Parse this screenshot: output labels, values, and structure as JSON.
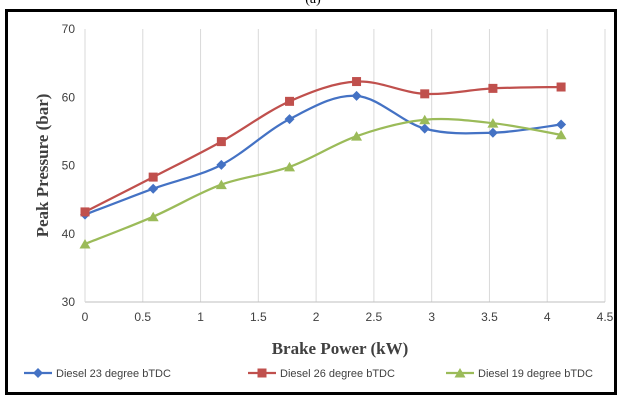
{
  "chart_data": {
    "type": "line",
    "title": "",
    "top_label": "(a)",
    "xlabel": "Brake Power (kW)",
    "ylabel": "Peak Pressure (bar)",
    "xlim": [
      0,
      4.5
    ],
    "ylim": [
      30,
      70
    ],
    "x_ticks": [
      "0",
      "0.5",
      "1",
      "1.5",
      "2",
      "2.5",
      "3",
      "3.5",
      "4",
      "4.5"
    ],
    "y_ticks": [
      "30",
      "40",
      "50",
      "60",
      "70"
    ],
    "grid": "vertical",
    "smooth": true,
    "legend_position": "bottom",
    "series": [
      {
        "name": "Diesel 23 degree bTDC",
        "color": "#4472C4",
        "marker": "diamond",
        "x": [
          0,
          0.59,
          1.18,
          1.77,
          2.35,
          2.94,
          3.53,
          4.12
        ],
        "y": [
          42.8,
          46.6,
          50.1,
          56.8,
          60.2,
          55.4,
          54.8,
          56.0
        ]
      },
      {
        "name": "Diesel 26 degree bTDC",
        "color": "#C0504D",
        "marker": "square",
        "x": [
          0,
          0.59,
          1.18,
          1.77,
          2.35,
          2.94,
          3.53,
          4.12
        ],
        "y": [
          43.2,
          48.3,
          53.5,
          59.4,
          62.3,
          60.5,
          61.3,
          61.5
        ]
      },
      {
        "name": "Diesel 19 degree bTDC",
        "color": "#9BBB59",
        "marker": "triangle",
        "x": [
          0,
          0.59,
          1.18,
          1.77,
          2.35,
          2.94,
          3.53,
          4.12
        ],
        "y": [
          38.5,
          42.5,
          47.2,
          49.8,
          54.3,
          56.7,
          56.2,
          54.5
        ]
      }
    ]
  }
}
